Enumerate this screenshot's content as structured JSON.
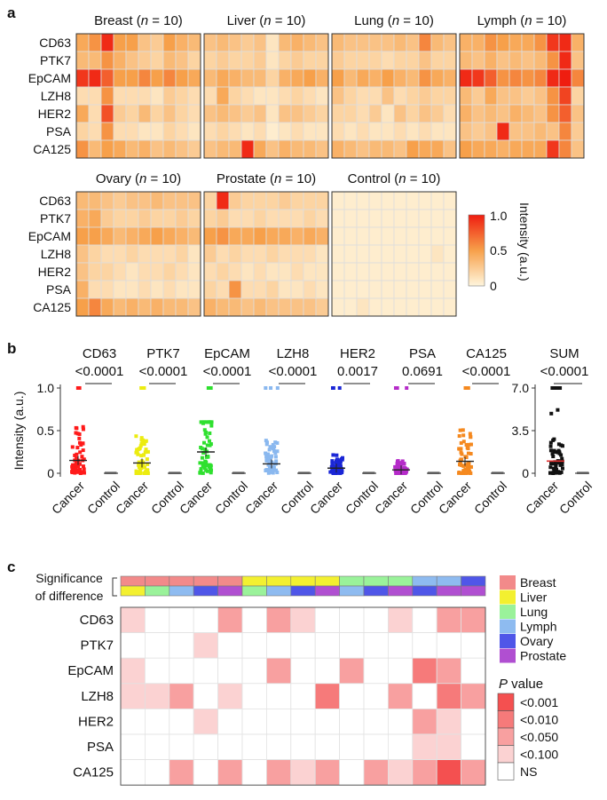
{
  "panel_labels": {
    "a": "a",
    "b": "b",
    "c": "c"
  },
  "colors": {
    "heat_low": "#fff6dd",
    "heat_mid": "#f7a04a",
    "heat_high": "#ef1d10",
    "breast": "#f28a8a",
    "liver": "#f3f030",
    "lung": "#9af29a",
    "lymph": "#8ebbf0",
    "ovary": "#4f56e8",
    "prostate": "#b04fd1",
    "cancer_dot": [
      "#ff1a1a",
      "#ecec10",
      "#2fe02f",
      "#8ab8ef",
      "#1a26d6",
      "#b52bc9",
      "#f5891f",
      "#111111"
    ],
    "pvals": [
      "#f45050",
      "#f67a7a",
      "#f8a0a0",
      "#fbd2d2",
      "#ffffff"
    ]
  },
  "panel_a": {
    "markers": [
      "CD63",
      "PTK7",
      "EpCAM",
      "LZH8",
      "HER2",
      "PSA",
      "CA125"
    ],
    "legend_title": "Intensity (a.u.)",
    "legend_ticks": [
      "1.0",
      "0.5",
      "0"
    ],
    "groups": [
      {
        "title": "Breast (n = 10)",
        "title_pre": "Breast (",
        "title_n": "n",
        "title_post": " = 10)",
        "values": [
          [
            0.45,
            0.55,
            0.95,
            0.5,
            0.5,
            0.3,
            0.25,
            0.5,
            0.4,
            0.35
          ],
          [
            0.35,
            0.35,
            0.55,
            0.4,
            0.3,
            0.25,
            0.2,
            0.35,
            0.3,
            0.2
          ],
          [
            0.9,
            0.95,
            0.75,
            0.5,
            0.5,
            0.6,
            0.5,
            0.6,
            0.5,
            0.45
          ],
          [
            0.15,
            0.15,
            0.55,
            0.15,
            0.15,
            0.15,
            0.1,
            0.25,
            0.2,
            0.15
          ],
          [
            0.45,
            0.15,
            0.8,
            0.25,
            0.2,
            0.35,
            0.2,
            0.3,
            0.2,
            0.15
          ],
          [
            0.2,
            0.15,
            0.55,
            0.15,
            0.15,
            0.1,
            0.1,
            0.2,
            0.15,
            0.1
          ],
          [
            0.55,
            0.35,
            0.5,
            0.45,
            0.35,
            0.4,
            0.3,
            0.35,
            0.3,
            0.25
          ]
        ]
      },
      {
        "title": "Liver (n = 10)",
        "title_pre": "Liver (",
        "title_n": "n",
        "title_post": " = 10)",
        "values": [
          [
            0.3,
            0.35,
            0.3,
            0.25,
            0.3,
            0.1,
            0.35,
            0.4,
            0.35,
            0.3
          ],
          [
            0.2,
            0.25,
            0.2,
            0.2,
            0.25,
            0.1,
            0.2,
            0.25,
            0.2,
            0.2
          ],
          [
            0.35,
            0.45,
            0.4,
            0.35,
            0.35,
            0.2,
            0.4,
            0.45,
            0.5,
            0.4
          ],
          [
            0.15,
            0.45,
            0.2,
            0.15,
            0.1,
            0.1,
            0.15,
            0.2,
            0.15,
            0.1
          ],
          [
            0.3,
            0.35,
            0.3,
            0.25,
            0.3,
            0.1,
            0.3,
            0.3,
            0.25,
            0.2
          ],
          [
            0.15,
            0.2,
            0.15,
            0.1,
            0.15,
            0.05,
            0.1,
            0.15,
            0.1,
            0.1
          ],
          [
            0.3,
            0.35,
            0.35,
            0.95,
            0.45,
            0.3,
            0.4,
            0.35,
            0.35,
            0.3
          ]
        ]
      },
      {
        "title": "Lung (n = 10)",
        "title_pre": "Lung (",
        "title_n": "n",
        "title_post": " = 10)",
        "values": [
          [
            0.35,
            0.3,
            0.3,
            0.3,
            0.3,
            0.35,
            0.3,
            0.6,
            0.35,
            0.3
          ],
          [
            0.25,
            0.2,
            0.2,
            0.2,
            0.15,
            0.2,
            0.2,
            0.3,
            0.2,
            0.2
          ],
          [
            0.5,
            0.35,
            0.45,
            0.4,
            0.5,
            0.4,
            0.35,
            0.55,
            0.45,
            0.4
          ],
          [
            0.3,
            0.2,
            0.15,
            0.15,
            0.3,
            0.15,
            0.2,
            0.25,
            0.2,
            0.2
          ],
          [
            0.2,
            0.2,
            0.15,
            0.25,
            0.1,
            0.3,
            0.2,
            0.3,
            0.25,
            0.15
          ],
          [
            0.15,
            0.1,
            0.15,
            0.1,
            0.1,
            0.15,
            0.1,
            0.15,
            0.1,
            0.1
          ],
          [
            0.4,
            0.35,
            0.3,
            0.35,
            0.35,
            0.3,
            0.5,
            0.45,
            0.45,
            0.3
          ]
        ]
      },
      {
        "title": "Lymph (n = 10)",
        "title_pre": "Lymph (",
        "title_n": "n",
        "title_post": " = 10)",
        "values": [
          [
            0.4,
            0.4,
            0.55,
            0.5,
            0.45,
            0.45,
            0.55,
            0.9,
            0.95,
            0.4
          ],
          [
            0.35,
            0.3,
            0.4,
            0.3,
            0.35,
            0.3,
            0.35,
            0.55,
            0.95,
            0.3
          ],
          [
            0.95,
            0.9,
            0.75,
            0.55,
            0.6,
            0.55,
            0.6,
            0.95,
            1.0,
            0.6
          ],
          [
            0.35,
            0.25,
            0.45,
            0.3,
            0.3,
            0.25,
            0.3,
            0.55,
            0.85,
            0.2
          ],
          [
            0.4,
            0.3,
            0.35,
            0.3,
            0.4,
            0.35,
            0.3,
            0.55,
            0.75,
            0.3
          ],
          [
            0.3,
            0.25,
            0.3,
            0.95,
            0.3,
            0.3,
            0.35,
            0.3,
            0.6,
            0.25
          ],
          [
            0.5,
            0.45,
            0.45,
            0.4,
            0.45,
            0.45,
            0.45,
            0.9,
            0.6,
            0.3
          ]
        ]
      },
      {
        "title": "Ovary (n = 10)",
        "title_pre": "Ovary (",
        "title_n": "n",
        "title_post": " = 10)",
        "values": [
          [
            0.35,
            0.35,
            0.3,
            0.25,
            0.3,
            0.3,
            0.35,
            0.3,
            0.3,
            0.3
          ],
          [
            0.4,
            0.45,
            0.25,
            0.2,
            0.2,
            0.25,
            0.2,
            0.2,
            0.25,
            0.2
          ],
          [
            0.5,
            0.5,
            0.45,
            0.35,
            0.4,
            0.45,
            0.5,
            0.45,
            0.4,
            0.35
          ],
          [
            0.3,
            0.2,
            0.15,
            0.15,
            0.2,
            0.15,
            0.15,
            0.15,
            0.2,
            0.1
          ],
          [
            0.3,
            0.2,
            0.2,
            0.15,
            0.1,
            0.15,
            0.15,
            0.2,
            0.15,
            0.1
          ],
          [
            0.4,
            0.15,
            0.15,
            0.1,
            0.1,
            0.15,
            0.1,
            0.15,
            0.1,
            0.1
          ],
          [
            0.5,
            0.6,
            0.45,
            0.35,
            0.4,
            0.35,
            0.4,
            0.35,
            0.35,
            0.3
          ]
        ]
      },
      {
        "title": "Prostate (n = 10)",
        "title_pre": "Prostate (",
        "title_n": "n",
        "title_post": " = 10)",
        "values": [
          [
            0.2,
            0.95,
            0.25,
            0.2,
            0.2,
            0.2,
            0.25,
            0.2,
            0.2,
            0.2
          ],
          [
            0.2,
            0.25,
            0.15,
            0.15,
            0.2,
            0.15,
            0.15,
            0.15,
            0.2,
            0.15
          ],
          [
            0.5,
            0.55,
            0.45,
            0.45,
            0.5,
            0.45,
            0.45,
            0.4,
            0.45,
            0.4
          ],
          [
            0.25,
            0.15,
            0.2,
            0.15,
            0.15,
            0.2,
            0.15,
            0.15,
            0.15,
            0.1
          ],
          [
            0.15,
            0.2,
            0.15,
            0.1,
            0.15,
            0.1,
            0.1,
            0.15,
            0.1,
            0.1
          ],
          [
            0.2,
            0.15,
            0.55,
            0.15,
            0.15,
            0.2,
            0.1,
            0.1,
            0.15,
            0.1
          ],
          [
            0.4,
            0.35,
            0.35,
            0.3,
            0.35,
            0.3,
            0.3,
            0.3,
            0.3,
            0.25
          ]
        ]
      },
      {
        "title": "Control (n = 10)",
        "title_pre": "Control (",
        "title_n": "n",
        "title_post": " = 10)",
        "values": [
          [
            0.05,
            0.05,
            0.05,
            0.05,
            0.05,
            0.05,
            0.05,
            0.05,
            0.05,
            0.05
          ],
          [
            0.05,
            0.05,
            0.05,
            0.05,
            0.05,
            0.05,
            0.05,
            0.05,
            0.05,
            0.05
          ],
          [
            0.05,
            0.05,
            0.05,
            0.05,
            0.05,
            0.05,
            0.05,
            0.05,
            0.05,
            0.05
          ],
          [
            0.05,
            0.05,
            0.05,
            0.05,
            0.05,
            0.05,
            0.05,
            0.05,
            0.1,
            0.05
          ],
          [
            0.05,
            0.05,
            0.05,
            0.05,
            0.05,
            0.05,
            0.05,
            0.05,
            0.05,
            0.05
          ],
          [
            0.05,
            0.05,
            0.05,
            0.05,
            0.05,
            0.05,
            0.05,
            0.05,
            0.05,
            0.05
          ],
          [
            0.05,
            0.05,
            0.1,
            0.05,
            0.05,
            0.05,
            0.05,
            0.05,
            0.05,
            0.05
          ]
        ]
      }
    ]
  },
  "panel_b": {
    "ylabel": "Intensity (a.u.)",
    "xcats": [
      "Cancer",
      "Control"
    ],
    "markers": [
      {
        "name": "CD63",
        "p": "<0.0001",
        "mean": 0.15
      },
      {
        "name": "PTK7",
        "p": "<0.0001",
        "mean": 0.12
      },
      {
        "name": "EpCAM",
        "p": "<0.0001",
        "mean": 0.25
      },
      {
        "name": "LZH8",
        "p": "<0.0001",
        "mean": 0.11
      },
      {
        "name": "HER2",
        "p": "0.0017",
        "mean": 0.06
      },
      {
        "name": "PSA",
        "p": "0.0691",
        "mean": 0.04
      },
      {
        "name": "CA125",
        "p": "<0.0001",
        "mean": 0.14
      }
    ],
    "yticks": [
      "1.0",
      "0.5",
      "0"
    ],
    "sum": {
      "name": "SUM",
      "p": "<0.0001",
      "mean": 1.0,
      "yticks": [
        "7.0",
        "3.5",
        "0"
      ]
    }
  },
  "panel_c": {
    "side_label_1": "Significance",
    "side_label_2": "of difference",
    "rows": [
      "CD63",
      "PTK7",
      "EpCAM",
      "LZH8",
      "HER2",
      "PSA",
      "CA125"
    ],
    "top_pairs": [
      [
        "breast",
        "liver"
      ],
      [
        "breast",
        "lung"
      ],
      [
        "breast",
        "lymph"
      ],
      [
        "breast",
        "ovary"
      ],
      [
        "breast",
        "prostate"
      ],
      [
        "liver",
        "lung"
      ],
      [
        "liver",
        "lymph"
      ],
      [
        "liver",
        "ovary"
      ],
      [
        "liver",
        "prostate"
      ],
      [
        "lung",
        "lymph"
      ],
      [
        "lung",
        "ovary"
      ],
      [
        "lung",
        "prostate"
      ],
      [
        "lymph",
        "ovary"
      ],
      [
        "lymph",
        "prostate"
      ],
      [
        "ovary",
        "prostate"
      ]
    ],
    "levels": [
      [
        3,
        4,
        4,
        4,
        2,
        4,
        2,
        3,
        4,
        4,
        4,
        3,
        4,
        2,
        2
      ],
      [
        4,
        4,
        4,
        3,
        4,
        4,
        4,
        4,
        4,
        4,
        4,
        4,
        4,
        4,
        4
      ],
      [
        3,
        4,
        4,
        4,
        4,
        4,
        2,
        4,
        4,
        2,
        4,
        4,
        1,
        2,
        4
      ],
      [
        3,
        3,
        2,
        4,
        3,
        4,
        4,
        4,
        1,
        4,
        4,
        2,
        4,
        1,
        2
      ],
      [
        4,
        4,
        4,
        3,
        4,
        4,
        4,
        4,
        4,
        4,
        4,
        4,
        2,
        3,
        4
      ],
      [
        4,
        4,
        4,
        4,
        4,
        4,
        4,
        4,
        4,
        4,
        4,
        4,
        3,
        3,
        4
      ],
      [
        4,
        4,
        2,
        4,
        2,
        4,
        2,
        3,
        2,
        4,
        2,
        3,
        2,
        0,
        2
      ]
    ],
    "legend": [
      "Breast",
      "Liver",
      "Lung",
      "Lymph",
      "Ovary",
      "Prostate"
    ],
    "p_title_italic": "P",
    "p_title_rest": " value",
    "p_levels": [
      "<0.001",
      "<0.010",
      "<0.050",
      "<0.100",
      "NS"
    ]
  },
  "chart_data": [
    {
      "type": "heatmap",
      "title": "Breast (n = 10)",
      "rows": [
        "CD63",
        "PTK7",
        "EpCAM",
        "LZH8",
        "HER2",
        "PSA",
        "CA125"
      ],
      "ylim": [
        0,
        1
      ]
    },
    {
      "type": "scatter",
      "series": [
        {
          "name": "CD63",
          "cancer_mean": 0.15,
          "control_mean": 0.0,
          "p": "<0.0001"
        },
        {
          "name": "PTK7",
          "cancer_mean": 0.12,
          "control_mean": 0.0,
          "p": "<0.0001"
        },
        {
          "name": "EpCAM",
          "cancer_mean": 0.25,
          "control_mean": 0.0,
          "p": "<0.0001"
        },
        {
          "name": "LZH8",
          "cancer_mean": 0.11,
          "control_mean": 0.0,
          "p": "<0.0001"
        },
        {
          "name": "HER2",
          "cancer_mean": 0.06,
          "control_mean": 0.0,
          "p": "0.0017"
        },
        {
          "name": "PSA",
          "cancer_mean": 0.04,
          "control_mean": 0.0,
          "p": "0.0691"
        },
        {
          "name": "CA125",
          "cancer_mean": 0.14,
          "control_mean": 0.0,
          "p": "<0.0001"
        },
        {
          "name": "SUM",
          "cancer_mean": 1.0,
          "control_mean": 0.0,
          "p": "<0.0001"
        }
      ],
      "ylabel": "Intensity (a.u.)",
      "ylim": [
        0,
        1
      ]
    },
    {
      "type": "heatmap",
      "rows": [
        "CD63",
        "PTK7",
        "EpCAM",
        "LZH8",
        "HER2",
        "PSA",
        "CA125"
      ],
      "legend": [
        "<0.001",
        "<0.010",
        "<0.050",
        "<0.100",
        "NS"
      ]
    }
  ]
}
